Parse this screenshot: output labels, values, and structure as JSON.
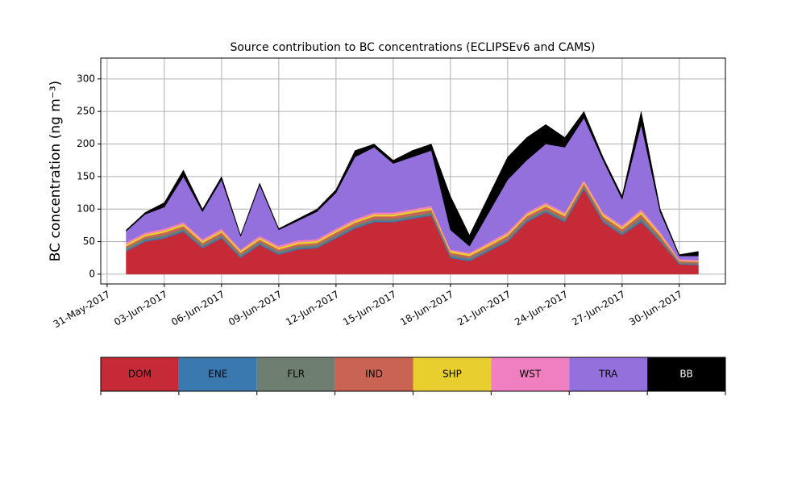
{
  "chart_data": {
    "type": "stacked_area",
    "title": "Source contribution to BC concentrations (ECLIPSEv6 and CAMS)",
    "ylabel": "BC concentration (ng m⁻³)",
    "x": [
      "2017-06-01",
      "2017-06-02",
      "2017-06-03",
      "2017-06-04",
      "2017-06-05",
      "2017-06-06",
      "2017-06-07",
      "2017-06-08",
      "2017-06-09",
      "2017-06-10",
      "2017-06-11",
      "2017-06-12",
      "2017-06-13",
      "2017-06-14",
      "2017-06-15",
      "2017-06-16",
      "2017-06-17",
      "2017-06-18",
      "2017-06-19",
      "2017-06-20",
      "2017-06-21",
      "2017-06-22",
      "2017-06-23",
      "2017-06-24",
      "2017-06-25",
      "2017-06-26",
      "2017-06-27",
      "2017-06-28",
      "2017-06-29",
      "2017-06-30",
      "2017-07-01"
    ],
    "series": [
      {
        "name": "DOM",
        "color": "#c52a36",
        "values": [
          35,
          50,
          55,
          65,
          40,
          55,
          25,
          45,
          30,
          38,
          40,
          55,
          70,
          80,
          80,
          85,
          90,
          25,
          20,
          35,
          50,
          80,
          95,
          80,
          130,
          80,
          60,
          80,
          50,
          15,
          14
        ]
      },
      {
        "name": "ENE",
        "color": "#3a78b0",
        "values": [
          2,
          2,
          2,
          2,
          2,
          2,
          2,
          2,
          2,
          2,
          2,
          2,
          2,
          2,
          2,
          2,
          2,
          2,
          2,
          2,
          2,
          2,
          2,
          2,
          2,
          2,
          2,
          3,
          2,
          1,
          1
        ]
      },
      {
        "name": "FLR",
        "color": "#6e7f71",
        "values": [
          3,
          3,
          3,
          3,
          3,
          3,
          3,
          3,
          3,
          3,
          3,
          3,
          3,
          3,
          3,
          3,
          3,
          3,
          3,
          3,
          3,
          3,
          3,
          3,
          3,
          3,
          3,
          4,
          3,
          2,
          2
        ]
      },
      {
        "name": "IND",
        "color": "#c96454",
        "values": [
          3,
          3,
          4,
          4,
          3,
          4,
          3,
          3,
          3,
          3,
          3,
          4,
          4,
          4,
          4,
          4,
          4,
          3,
          3,
          3,
          4,
          4,
          4,
          4,
          4,
          4,
          4,
          5,
          4,
          2,
          2
        ]
      },
      {
        "name": "SHP",
        "color": "#e8ce2e",
        "values": [
          3,
          3,
          3,
          3,
          3,
          3,
          3,
          3,
          3,
          3,
          3,
          3,
          3,
          3,
          3,
          3,
          3,
          3,
          3,
          3,
          3,
          3,
          3,
          3,
          3,
          3,
          3,
          4,
          3,
          1,
          1
        ]
      },
      {
        "name": "WST",
        "color": "#f07fbf",
        "values": [
          3,
          3,
          3,
          3,
          3,
          3,
          2,
          3,
          3,
          3,
          3,
          3,
          3,
          3,
          3,
          3,
          3,
          2,
          2,
          3,
          3,
          3,
          3,
          3,
          3,
          3,
          3,
          4,
          3,
          2,
          2
        ]
      },
      {
        "name": "TRA",
        "color": "#9370db",
        "values": [
          17,
          28,
          33,
          70,
          42,
          75,
          20,
          78,
          24,
          30,
          42,
          55,
          95,
          100,
          75,
          80,
          85,
          30,
          10,
          45,
          80,
          80,
          90,
          100,
          95,
          80,
          40,
          130,
          30,
          5,
          6
        ]
      },
      {
        "name": "BB",
        "color": "#000000",
        "values": [
          2,
          3,
          7,
          10,
          4,
          5,
          2,
          3,
          2,
          3,
          4,
          5,
          10,
          5,
          5,
          10,
          10,
          52,
          17,
          26,
          35,
          35,
          30,
          15,
          10,
          5,
          5,
          20,
          5,
          2,
          7
        ]
      }
    ],
    "xlim": [
      "2017-05-30T16:00",
      "2017-07-02T10:00"
    ],
    "xticks": [
      {
        "value": "2017-05-31",
        "label": "31-May-2017"
      },
      {
        "value": "2017-06-03",
        "label": "03-Jun-2017"
      },
      {
        "value": "2017-06-06",
        "label": "06-Jun-2017"
      },
      {
        "value": "2017-06-09",
        "label": "09-Jun-2017"
      },
      {
        "value": "2017-06-12",
        "label": "12-Jun-2017"
      },
      {
        "value": "2017-06-15",
        "label": "15-Jun-2017"
      },
      {
        "value": "2017-06-18",
        "label": "18-Jun-2017"
      },
      {
        "value": "2017-06-21",
        "label": "21-Jun-2017"
      },
      {
        "value": "2017-06-24",
        "label": "24-Jun-2017"
      },
      {
        "value": "2017-06-27",
        "label": "27-Jun-2017"
      },
      {
        "value": "2017-06-30",
        "label": "30-Jun-2017"
      }
    ],
    "ylim": [
      -15,
      332
    ],
    "yticks": [
      0,
      50,
      100,
      150,
      200,
      250,
      300
    ],
    "grid": true
  }
}
